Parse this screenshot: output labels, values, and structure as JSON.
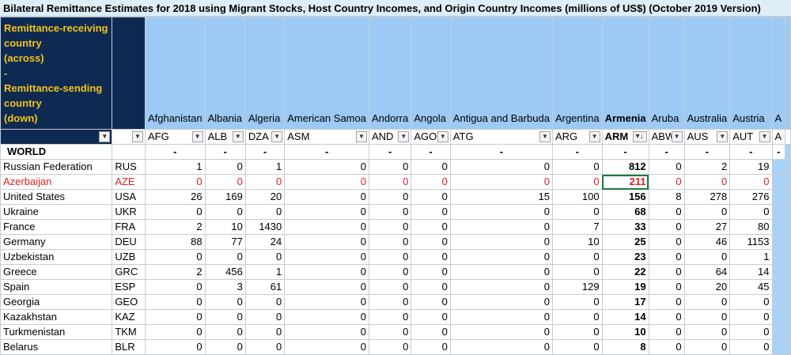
{
  "title": "Bilateral Remittance Estimates for 2018 using Migrant Stocks, Host Country Incomes, and Origin Country Incomes (millions of US$) (October 2019 Version)",
  "header_label": {
    "line1": "Remittance-receiving country",
    "line2": "(across)",
    "line3": "-",
    "line4": "Remittance-sending country",
    "line5": "(down)"
  },
  "columns": [
    {
      "name": "Afghanistan",
      "code": "AFG"
    },
    {
      "name": "Albania",
      "code": "ALB"
    },
    {
      "name": "Algeria",
      "code": "DZA"
    },
    {
      "name": "American Samoa",
      "code": "ASM"
    },
    {
      "name": "Andorra",
      "code": "AND"
    },
    {
      "name": "Angola",
      "code": "AGO"
    },
    {
      "name": "Antigua and Barbuda",
      "code": "ATG"
    },
    {
      "name": "Argentina",
      "code": "ARG"
    },
    {
      "name": "Armenia",
      "code": "ARM"
    },
    {
      "name": "Aruba",
      "code": "ABW"
    },
    {
      "name": "Australia",
      "code": "AUS"
    },
    {
      "name": "Austria",
      "code": "AUT"
    },
    {
      "name": "A",
      "code": "A"
    }
  ],
  "filter_icon": "dropdown-arrow-icon",
  "sorted_icon": "sort-descending-icon",
  "world_label": "WORLD",
  "dash": "-",
  "rows": [
    {
      "name": "Russian Federation",
      "code": "RUS",
      "values": [
        "1",
        "0",
        "1",
        "0",
        "0",
        "0",
        "0",
        "0",
        "812",
        "0",
        "2",
        "19",
        ""
      ]
    },
    {
      "name": "Azerbaijan",
      "code": "AZE",
      "values": [
        "0",
        "0",
        "0",
        "0",
        "0",
        "0",
        "0",
        "0",
        "211",
        "0",
        "0",
        "0",
        ""
      ],
      "highlight": true
    },
    {
      "name": "United States",
      "code": "USA",
      "values": [
        "26",
        "169",
        "20",
        "0",
        "0",
        "0",
        "15",
        "100",
        "156",
        "8",
        "278",
        "276",
        ""
      ]
    },
    {
      "name": "Ukraine",
      "code": "UKR",
      "values": [
        "0",
        "0",
        "0",
        "0",
        "0",
        "0",
        "0",
        "0",
        "68",
        "0",
        "0",
        "0",
        ""
      ]
    },
    {
      "name": "France",
      "code": "FRA",
      "values": [
        "2",
        "10",
        "1430",
        "0",
        "0",
        "0",
        "0",
        "7",
        "33",
        "0",
        "27",
        "80",
        ""
      ]
    },
    {
      "name": "Germany",
      "code": "DEU",
      "values": [
        "88",
        "77",
        "24",
        "0",
        "0",
        "0",
        "0",
        "10",
        "25",
        "0",
        "46",
        "1153",
        ""
      ]
    },
    {
      "name": "Uzbekistan",
      "code": "UZB",
      "values": [
        "0",
        "0",
        "0",
        "0",
        "0",
        "0",
        "0",
        "0",
        "23",
        "0",
        "0",
        "1",
        ""
      ]
    },
    {
      "name": "Greece",
      "code": "GRC",
      "values": [
        "2",
        "456",
        "1",
        "0",
        "0",
        "0",
        "0",
        "0",
        "22",
        "0",
        "64",
        "14",
        ""
      ]
    },
    {
      "name": "Spain",
      "code": "ESP",
      "values": [
        "0",
        "3",
        "61",
        "0",
        "0",
        "0",
        "0",
        "129",
        "19",
        "0",
        "20",
        "45",
        ""
      ]
    },
    {
      "name": "Georgia",
      "code": "GEO",
      "values": [
        "0",
        "0",
        "0",
        "0",
        "0",
        "0",
        "0",
        "0",
        "17",
        "0",
        "0",
        "0",
        ""
      ]
    },
    {
      "name": "Kazakhstan",
      "code": "KAZ",
      "values": [
        "0",
        "0",
        "0",
        "0",
        "0",
        "0",
        "0",
        "0",
        "14",
        "0",
        "0",
        "0",
        ""
      ]
    },
    {
      "name": "Turkmenistan",
      "code": "TKM",
      "values": [
        "0",
        "0",
        "0",
        "0",
        "0",
        "0",
        "0",
        "0",
        "10",
        "0",
        "0",
        "0",
        ""
      ]
    },
    {
      "name": "Belarus",
      "code": "BLR",
      "values": [
        "0",
        "0",
        "0",
        "0",
        "0",
        "0",
        "0",
        "0",
        "8",
        "0",
        "0",
        "0",
        ""
      ]
    }
  ]
}
